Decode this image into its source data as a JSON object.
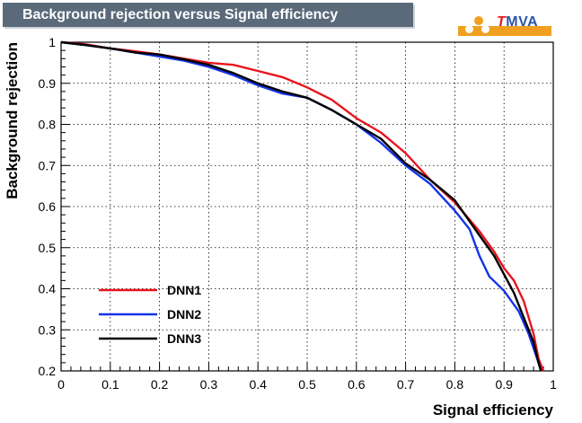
{
  "chart_data": {
    "type": "line",
    "title": "Background rejection versus Signal efficiency",
    "xlabel": "Signal efficiency",
    "ylabel": "Background rejection",
    "xlim": [
      0,
      1
    ],
    "ylim": [
      0.2,
      1
    ],
    "xticks": [
      "0",
      "0.1",
      "0.2",
      "0.3",
      "0.4",
      "0.5",
      "0.6",
      "0.7",
      "0.8",
      "0.9",
      "1"
    ],
    "yticks": [
      "0.2",
      "0.3",
      "0.4",
      "0.5",
      "0.6",
      "0.7",
      "0.8",
      "0.9",
      "1"
    ],
    "grid": true,
    "legend_position": "bottom-left",
    "series": [
      {
        "name": "DNN1",
        "color": "#e8141e",
        "x": [
          0,
          0.05,
          0.1,
          0.15,
          0.2,
          0.25,
          0.3,
          0.35,
          0.4,
          0.45,
          0.5,
          0.55,
          0.6,
          0.65,
          0.7,
          0.75,
          0.8,
          0.85,
          0.88,
          0.9,
          0.92,
          0.94,
          0.96,
          0.97,
          0.98
        ],
        "y": [
          1.0,
          0.995,
          0.985,
          0.978,
          0.97,
          0.96,
          0.95,
          0.945,
          0.93,
          0.915,
          0.89,
          0.86,
          0.815,
          0.78,
          0.73,
          0.665,
          0.61,
          0.54,
          0.49,
          0.45,
          0.42,
          0.37,
          0.29,
          0.23,
          0.2
        ]
      },
      {
        "name": "DNN2",
        "color": "#1434e8",
        "x": [
          0,
          0.05,
          0.1,
          0.15,
          0.2,
          0.25,
          0.3,
          0.35,
          0.4,
          0.45,
          0.5,
          0.55,
          0.6,
          0.65,
          0.7,
          0.75,
          0.8,
          0.83,
          0.85,
          0.87,
          0.9,
          0.93,
          0.95,
          0.97,
          0.975
        ],
        "y": [
          1.0,
          0.993,
          0.985,
          0.975,
          0.965,
          0.955,
          0.94,
          0.92,
          0.895,
          0.875,
          0.865,
          0.835,
          0.8,
          0.755,
          0.7,
          0.655,
          0.59,
          0.545,
          0.48,
          0.43,
          0.395,
          0.345,
          0.29,
          0.22,
          0.2
        ]
      },
      {
        "name": "DNN3",
        "color": "#000000",
        "x": [
          0,
          0.05,
          0.1,
          0.15,
          0.2,
          0.25,
          0.3,
          0.35,
          0.4,
          0.45,
          0.5,
          0.55,
          0.6,
          0.65,
          0.7,
          0.75,
          0.8,
          0.85,
          0.88,
          0.9,
          0.92,
          0.94,
          0.96,
          0.97,
          0.975
        ],
        "y": [
          1.0,
          0.993,
          0.985,
          0.975,
          0.97,
          0.958,
          0.945,
          0.925,
          0.9,
          0.88,
          0.865,
          0.835,
          0.8,
          0.765,
          0.705,
          0.665,
          0.615,
          0.53,
          0.48,
          0.435,
          0.39,
          0.33,
          0.27,
          0.22,
          0.2
        ]
      }
    ]
  },
  "logo": {
    "text_t": "T",
    "text_rest": "MVA",
    "dot_colors": [
      "#f0a020",
      "#e21a1a",
      "#ffffff"
    ]
  }
}
